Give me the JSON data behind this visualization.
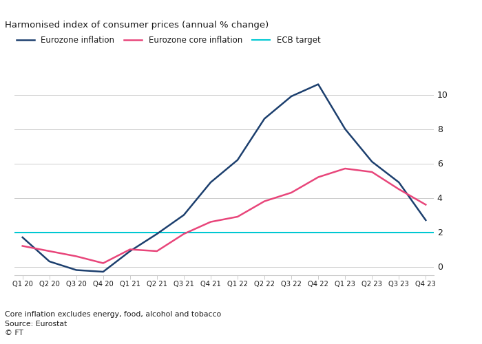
{
  "title": "Harmonised index of consumer prices (annual % change)",
  "footnote1": "Core inflation excludes energy, food, alcohol and tobacco",
  "footnote2": "Source: Eurostat",
  "footnote3": "© FT",
  "ecb_target": 2.0,
  "x_labels": [
    "Q1 20",
    "Q2 20",
    "Q3 20",
    "Q4 20",
    "Q1 21",
    "Q2 21",
    "Q3 21",
    "Q4 21",
    "Q1 22",
    "Q2 22",
    "Q3 22",
    "Q4 22",
    "Q1 23",
    "Q2 23",
    "Q3 23",
    "Q4 23"
  ],
  "eurozone_inflation": [
    1.7,
    0.3,
    -0.2,
    -0.3,
    0.9,
    1.9,
    3.0,
    4.9,
    6.2,
    8.6,
    9.9,
    10.6,
    8.0,
    6.1,
    4.9,
    2.7
  ],
  "eurozone_core_inflation": [
    1.2,
    0.9,
    0.6,
    0.2,
    1.0,
    0.9,
    1.9,
    2.6,
    2.9,
    3.8,
    4.3,
    5.2,
    5.7,
    5.5,
    4.5,
    3.6
  ],
  "line_color_inflation": "#1c3f6e",
  "line_color_core": "#e8457a",
  "line_color_ecb": "#00c8d2",
  "ylim": [
    -0.5,
    11.5
  ],
  "yticks": [
    0,
    2,
    4,
    6,
    8,
    10
  ],
  "background_color": "#ffffff",
  "text_color": "#1a1a1a",
  "grid_color": "#cccccc",
  "legend_labels": [
    "Eurozone inflation",
    "Eurozone core inflation",
    "ECB target"
  ]
}
